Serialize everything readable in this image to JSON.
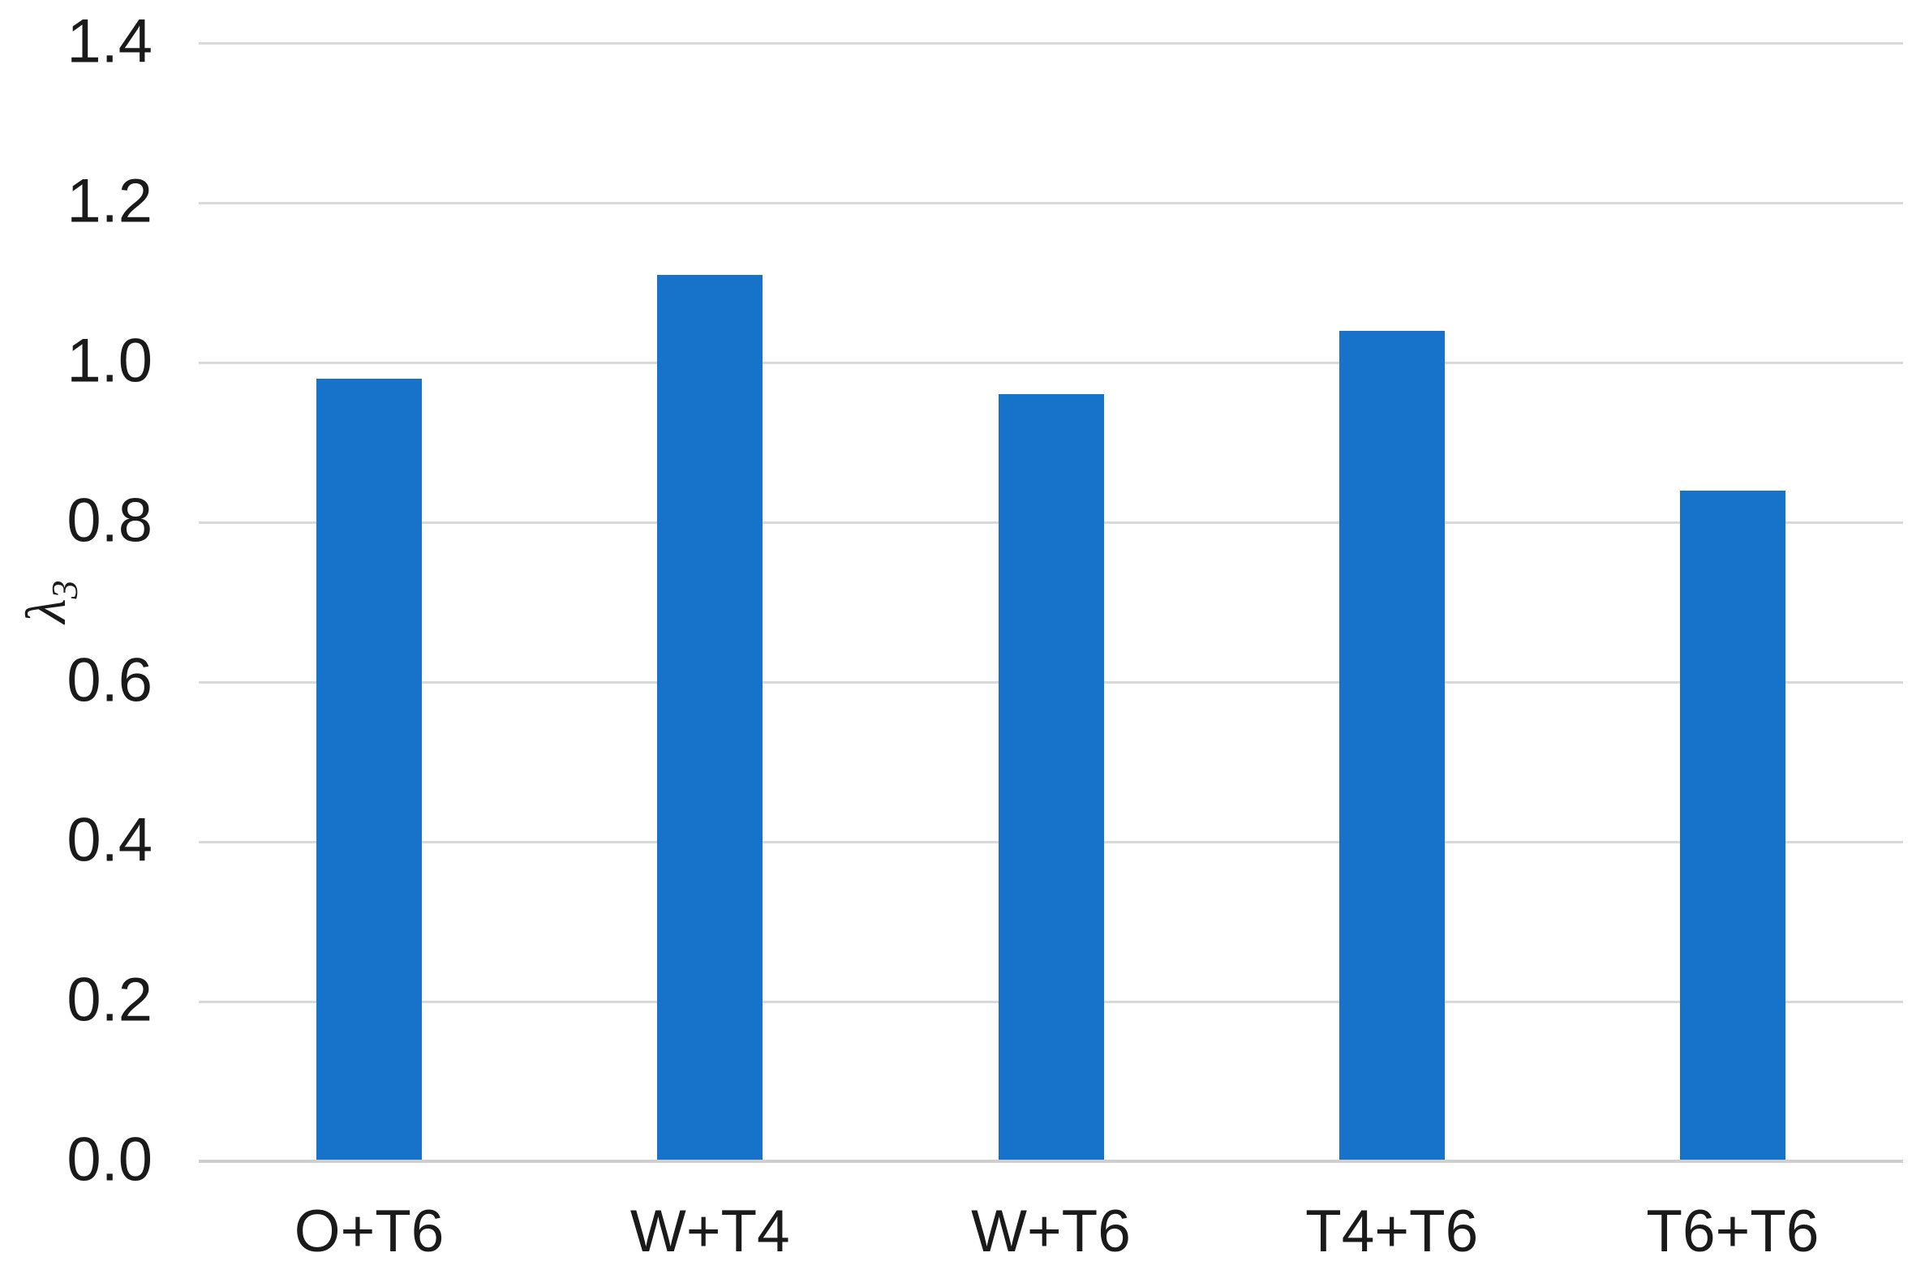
{
  "chart_data": {
    "type": "bar",
    "title": "",
    "xlabel": "",
    "ylabel": "λ",
    "ylabel_subscript": "3",
    "categories": [
      "O+T6",
      "W+T4",
      "W+T6",
      "T4+T6",
      "T6+T6"
    ],
    "values": [
      0.98,
      1.11,
      0.96,
      1.04,
      0.84
    ],
    "ylim": [
      0.0,
      1.4
    ],
    "ytick_step": 0.2,
    "ytick_labels": [
      "0.0",
      "0.2",
      "0.4",
      "0.6",
      "0.8",
      "1.0",
      "1.2",
      "1.4"
    ],
    "grid": true,
    "legend": false,
    "colors": {
      "bar": "#1773C9",
      "gridline": "#D9D9D9",
      "axis_line": "#CFCFCF",
      "text": "#1A1A1A",
      "background": "#FFFFFF"
    }
  }
}
